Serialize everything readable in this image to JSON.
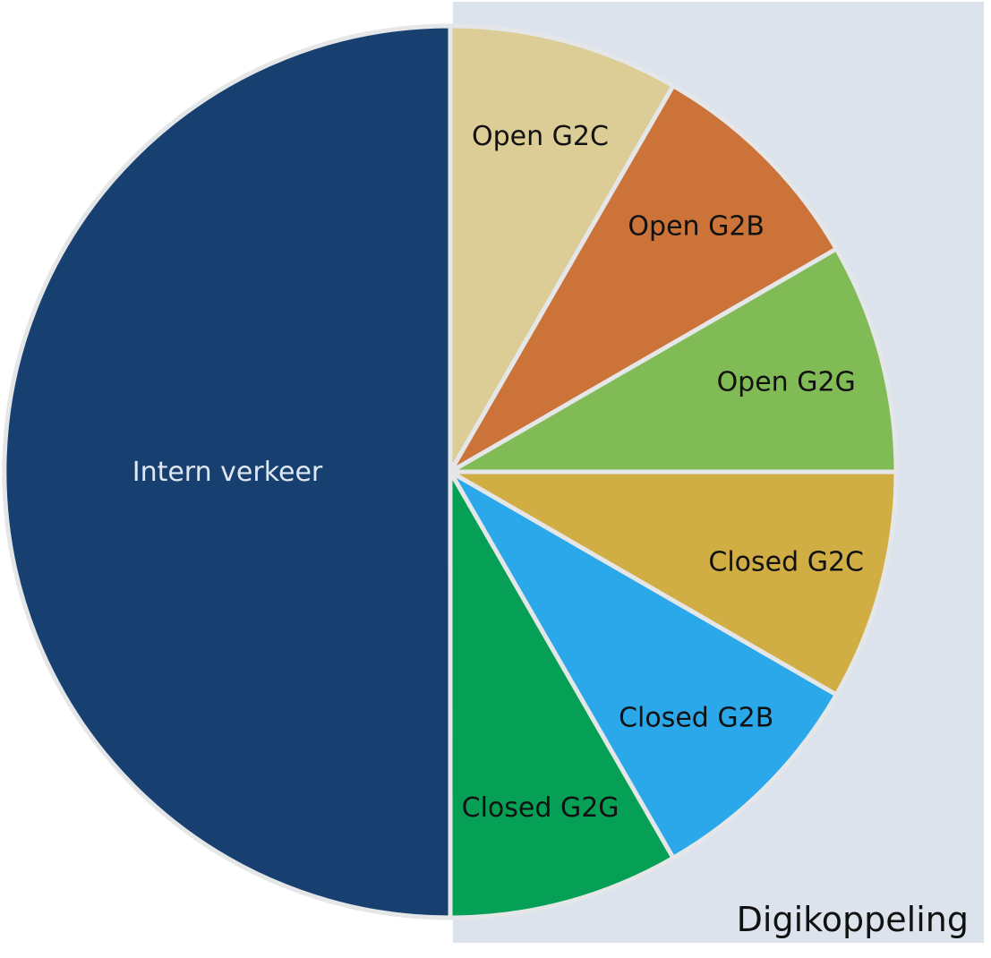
{
  "chart_data": {
    "type": "pie",
    "title": "",
    "start_angle_deg": 0,
    "direction": "clockwise",
    "slices": [
      {
        "label": "Open G2C",
        "value": 8.333,
        "color": "#dbcd95",
        "label_color": "#111111"
      },
      {
        "label": "Open G2B",
        "value": 8.333,
        "color": "#cc733a",
        "label_color": "#111111"
      },
      {
        "label": "Open G2G",
        "value": 8.333,
        "color": "#80bb56",
        "label_color": "#111111"
      },
      {
        "label": "Closed G2C",
        "value": 8.333,
        "color": "#d0ae43",
        "label_color": "#111111"
      },
      {
        "label": "Closed G2B",
        "value": 8.333,
        "color": "#2aa8ea",
        "label_color": "#111111"
      },
      {
        "label": "Closed G2G",
        "value": 8.333,
        "color": "#05a055",
        "label_color": "#111111"
      },
      {
        "label": "Intern verkeer",
        "value": 50,
        "color": "#174071",
        "label_color": "#dfe7f0"
      }
    ],
    "group_panel": {
      "label": "Digikoppeling",
      "members": [
        "Open G2C",
        "Open G2B",
        "Open G2G",
        "Closed G2C",
        "Closed G2B",
        "Closed G2G"
      ],
      "background": "#dce3ec"
    },
    "separator_color": "#e4e6e8"
  }
}
